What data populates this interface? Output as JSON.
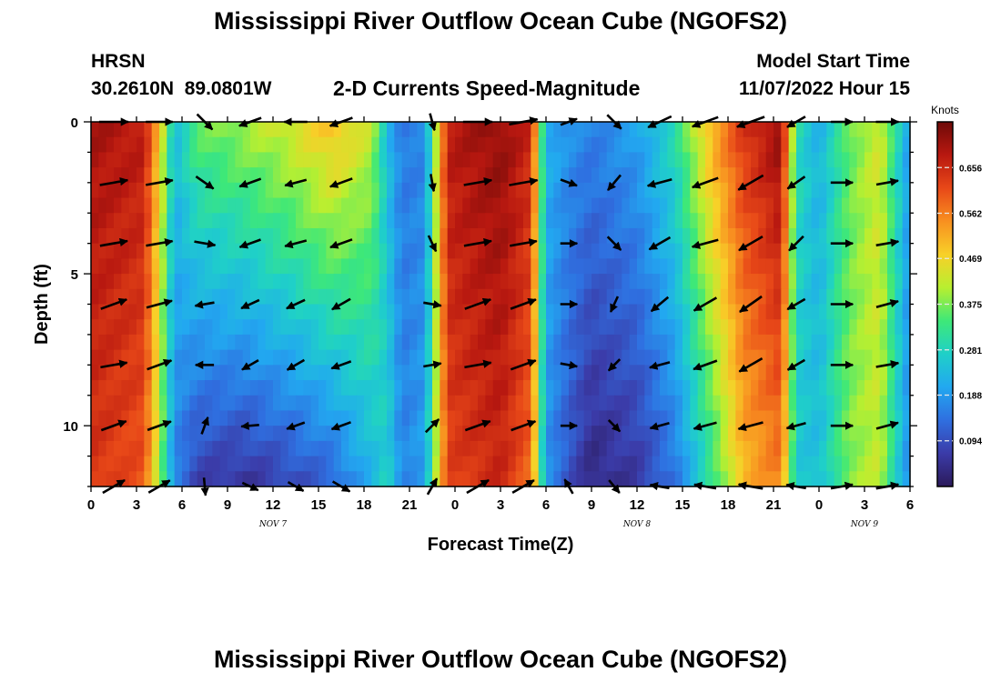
{
  "page": {
    "title": "Mississippi River Outflow Ocean Cube (NGOFS2)",
    "station_id": "HRSN",
    "station_coords": "30.2610N  89.0801W",
    "plot_title": "2-D Currents Speed-Magnitude",
    "model_start_label": "Model Start Time",
    "model_start_value": "11/07/2022 Hour 15",
    "footer_title": "Mississippi River Outflow Ocean Cube (NGOFS2)"
  },
  "chart_data": {
    "type": "heatmap",
    "title": "2-D Currents Speed-Magnitude",
    "xlabel": "Forecast Time(Z)",
    "ylabel": "Depth (ft)",
    "x_range_hours": [
      0,
      54
    ],
    "y_range_ft": [
      0,
      12
    ],
    "x_tick_hours": [
      0,
      3,
      6,
      9,
      12,
      15,
      18,
      21,
      24,
      27,
      30,
      33,
      36,
      39,
      42,
      45,
      48,
      51,
      54
    ],
    "x_tick_labels": [
      "0",
      "3",
      "6",
      "9",
      "12",
      "15",
      "18",
      "21",
      "0",
      "3",
      "6",
      "9",
      "12",
      "15",
      "18",
      "21",
      "0",
      "3",
      "6"
    ],
    "day_labels": [
      {
        "hour": 12,
        "text": "NOV 7"
      },
      {
        "hour": 36,
        "text": "NOV 8"
      },
      {
        "hour": 51,
        "text": "NOV 9"
      }
    ],
    "y_ticks": [
      0,
      5,
      10
    ],
    "y_tick_labels": [
      "0",
      "5",
      "10"
    ],
    "colorbar": {
      "title": "Knots",
      "min": 0.0,
      "max": 0.75,
      "ticks": [
        0.094,
        0.188,
        0.281,
        0.375,
        0.469,
        0.562,
        0.656
      ],
      "tick_labels": [
        "0.094",
        "0.188",
        "0.281",
        "0.375",
        "0.469",
        "0.562",
        "0.656"
      ],
      "colors": [
        "#2b1a5a",
        "#3b3ba8",
        "#2f6fe0",
        "#22a8f0",
        "#1fd0c8",
        "#3ee878",
        "#b8ef30",
        "#f8d028",
        "#f89020",
        "#e84818",
        "#b81810",
        "#6e0a08"
      ]
    },
    "speed_profile_hours": [
      0,
      3.5,
      4.5,
      5.5,
      7,
      10,
      13,
      16,
      18.5,
      19.5,
      20.5,
      22,
      23.5,
      27,
      29,
      30,
      31.5,
      33,
      36,
      38.5,
      41,
      43,
      45.5,
      46.5,
      48,
      50,
      52,
      54
    ],
    "speed_profile_surface": [
      0.7,
      0.68,
      0.48,
      0.24,
      0.36,
      0.4,
      0.44,
      0.5,
      0.42,
      0.24,
      0.15,
      0.16,
      0.68,
      0.72,
      0.66,
      0.22,
      0.18,
      0.16,
      0.2,
      0.3,
      0.52,
      0.64,
      0.72,
      0.3,
      0.22,
      0.36,
      0.44,
      0.18
    ],
    "speed_profile_bottom": [
      0.64,
      0.6,
      0.4,
      0.16,
      0.07,
      0.05,
      0.08,
      0.12,
      0.22,
      0.28,
      0.16,
      0.2,
      0.62,
      0.66,
      0.58,
      0.18,
      0.1,
      0.03,
      0.06,
      0.14,
      0.32,
      0.5,
      0.56,
      0.26,
      0.24,
      0.38,
      0.42,
      0.16
    ],
    "current_vectors": {
      "depth_ft": [
        0,
        2,
        4,
        6,
        8,
        10,
        12
      ],
      "hours": [
        1.5,
        4.5,
        7.5,
        10.5,
        13.5,
        16.5,
        22.5,
        25.5,
        28.5,
        31.5,
        34.5,
        37.5,
        40.5,
        43.5,
        46.5,
        49.5,
        52.5
      ],
      "direction_deg": [
        [
          90,
          90,
          135,
          250,
          270,
          250,
          165,
          90,
          80,
          70,
          135,
          245,
          250,
          250,
          240,
          90,
          90
        ],
        [
          80,
          80,
          125,
          250,
          255,
          250,
          170,
          80,
          80,
          110,
          220,
          255,
          250,
          240,
          235,
          90,
          80
        ],
        [
          80,
          80,
          100,
          250,
          255,
          250,
          155,
          80,
          80,
          90,
          135,
          240,
          255,
          240,
          225,
          90,
          80
        ],
        [
          70,
          75,
          260,
          245,
          245,
          240,
          100,
          70,
          70,
          90,
          205,
          230,
          240,
          235,
          240,
          90,
          75
        ],
        [
          80,
          70,
          270,
          240,
          240,
          250,
          80,
          80,
          70,
          100,
          225,
          255,
          250,
          240,
          240,
          90,
          80
        ],
        [
          70,
          70,
          20,
          265,
          250,
          250,
          45,
          70,
          70,
          90,
          135,
          255,
          255,
          255,
          255,
          90,
          75
        ],
        [
          60,
          60,
          175,
          115,
          120,
          120,
          30,
          60,
          60,
          330,
          140,
          280,
          280,
          280,
          280,
          80,
          80
        ]
      ],
      "magnitude_knots": [
        [
          0.7,
          0.6,
          0.38,
          0.45,
          0.44,
          0.48,
          0.2,
          0.7,
          0.68,
          0.2,
          0.3,
          0.55,
          0.62,
          0.7,
          0.35,
          0.38,
          0.42
        ],
        [
          0.66,
          0.62,
          0.36,
          0.42,
          0.4,
          0.46,
          0.2,
          0.66,
          0.68,
          0.2,
          0.3,
          0.52,
          0.62,
          0.68,
          0.35,
          0.4,
          0.4
        ],
        [
          0.64,
          0.6,
          0.36,
          0.4,
          0.4,
          0.44,
          0.2,
          0.64,
          0.62,
          0.18,
          0.26,
          0.48,
          0.6,
          0.62,
          0.32,
          0.4,
          0.42
        ],
        [
          0.62,
          0.58,
          0.28,
          0.3,
          0.32,
          0.36,
          0.22,
          0.62,
          0.6,
          0.18,
          0.18,
          0.4,
          0.56,
          0.6,
          0.32,
          0.4,
          0.42
        ],
        [
          0.6,
          0.56,
          0.24,
          0.26,
          0.3,
          0.34,
          0.22,
          0.6,
          0.58,
          0.18,
          0.14,
          0.34,
          0.52,
          0.58,
          0.3,
          0.4,
          0.42
        ],
        [
          0.58,
          0.52,
          0.22,
          0.22,
          0.26,
          0.32,
          0.24,
          0.58,
          0.56,
          0.16,
          0.14,
          0.3,
          0.46,
          0.54,
          0.3,
          0.4,
          0.42
        ],
        [
          0.54,
          0.5,
          0.22,
          0.2,
          0.22,
          0.3,
          0.24,
          0.54,
          0.52,
          0.16,
          0.16,
          0.28,
          0.4,
          0.5,
          0.3,
          0.4,
          0.42
        ]
      ]
    }
  }
}
